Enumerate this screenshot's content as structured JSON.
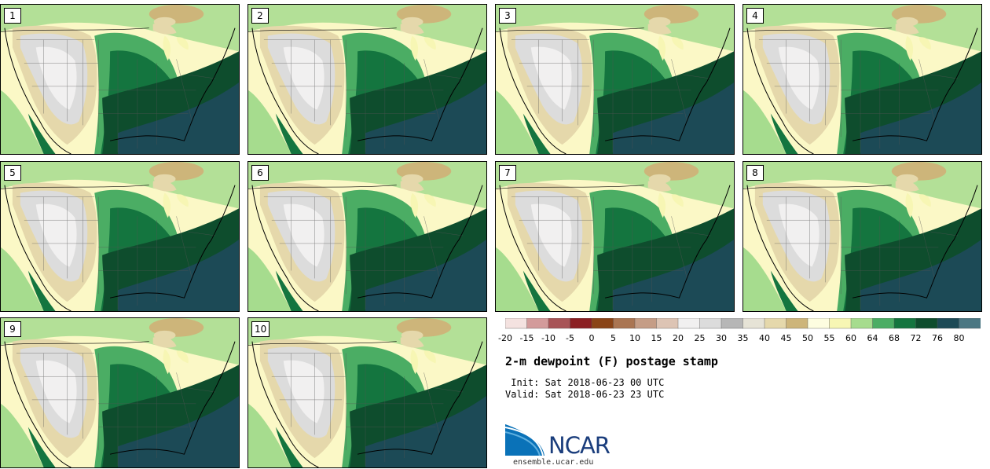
{
  "panels": [
    {
      "label": "1"
    },
    {
      "label": "2"
    },
    {
      "label": "3"
    },
    {
      "label": "4"
    },
    {
      "label": "5"
    },
    {
      "label": "6"
    },
    {
      "label": "7"
    },
    {
      "label": "8"
    },
    {
      "label": "9"
    },
    {
      "label": "10"
    }
  ],
  "legend": {
    "ticks": [
      "-20",
      "-15",
      "-10",
      "-5",
      "0",
      "5",
      "10",
      "15",
      "20",
      "25",
      "30",
      "35",
      "40",
      "45",
      "50",
      "55",
      "60",
      "64",
      "68",
      "72",
      "76",
      "80"
    ],
    "colors": [
      "#f4e2e0",
      "#d39b9b",
      "#a85457",
      "#8b1f22",
      "#8a4417",
      "#aa7552",
      "#c59d86",
      "#ddc4b4",
      "#f1f0f0",
      "#dcdcdc",
      "#b6b6b6",
      "#e6e3d6",
      "#e5d8ab",
      "#cdb57a",
      "#fdfde0",
      "#f7f6b4",
      "#a6dc8e",
      "#4bad64",
      "#14753f",
      "#0e4d2d",
      "#1c4a56",
      "#4b7783"
    ]
  },
  "title": "2-m dewpoint (F) postage stamp",
  "init_line": " Init: Sat 2018-06-23 00 UTC",
  "valid_line": "Valid: Sat 2018-06-23 23 UTC",
  "logo_text": "NCAR",
  "site": "ensemble.ucar.edu"
}
